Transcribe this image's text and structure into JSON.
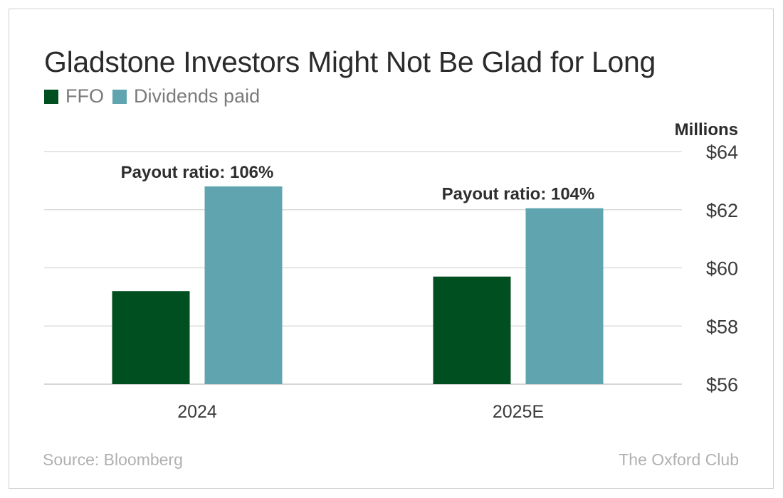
{
  "chart_data": {
    "type": "bar",
    "title": "Gladstone Investors Might Not Be Glad for Long",
    "categories": [
      "2024",
      "2025E"
    ],
    "series": [
      {
        "name": "FFO",
        "color": "#004f21",
        "values": [
          59.2,
          59.7
        ]
      },
      {
        "name": "Dividends paid",
        "color": "#5fa4ae",
        "values": [
          62.8,
          62.05
        ]
      }
    ],
    "annotations": [
      "Payout ratio: 106%",
      "Payout ratio: 104%"
    ],
    "xlabel": "",
    "ylabel": "Millions",
    "ylim": [
      56,
      64
    ],
    "yticks": [
      64,
      62,
      60,
      58,
      56
    ],
    "ytick_labels": [
      "$64",
      "$62",
      "$60",
      "$58",
      "$56"
    ],
    "grid": true,
    "legend_position": "top-left",
    "y_axis_side": "right"
  },
  "footer": {
    "source": "Source: Bloomberg",
    "brand": "The Oxford Club"
  }
}
